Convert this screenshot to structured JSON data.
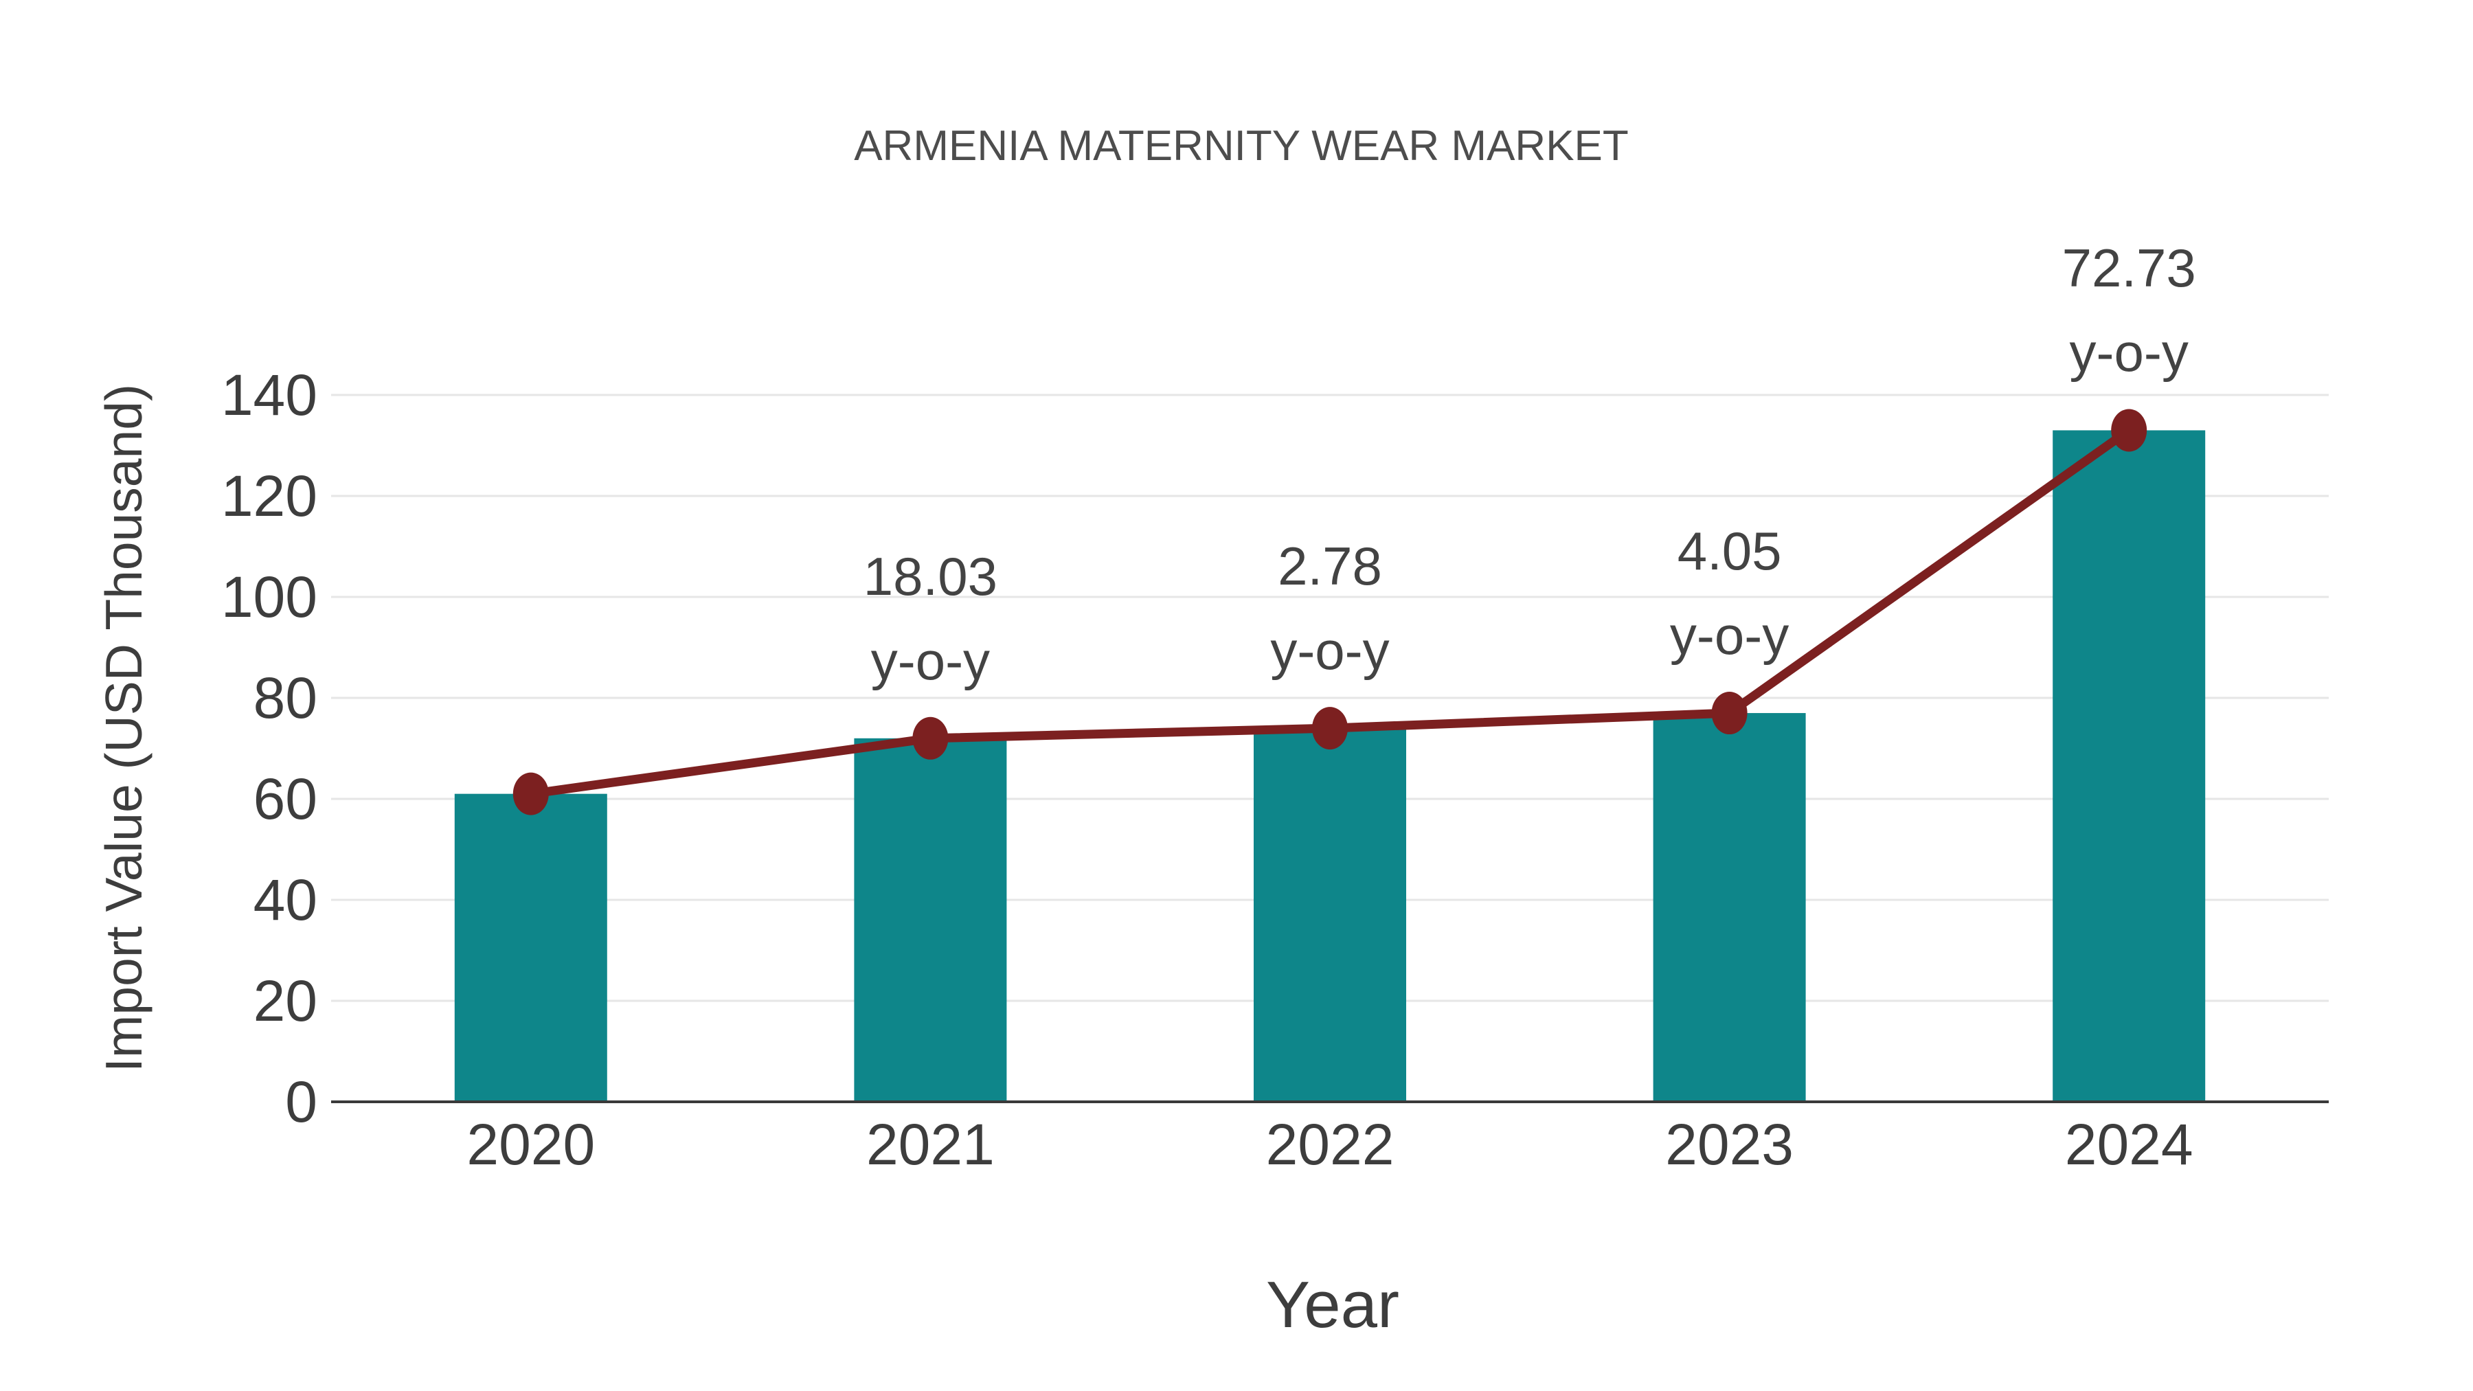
{
  "chart_data": {
    "type": "bar",
    "title": "ARMENIA MATERNITY WEAR MARKET",
    "xlabel": "Year",
    "ylabel": "Import Value (USD Thousand)",
    "categories": [
      "2020",
      "2021",
      "2022",
      "2023",
      "2024"
    ],
    "series": [
      {
        "name": "import-value-bars",
        "type": "bar",
        "values": [
          61,
          72,
          74,
          77,
          133
        ]
      },
      {
        "name": "import-value-line",
        "type": "line",
        "values": [
          61,
          72,
          74,
          77,
          133
        ]
      }
    ],
    "annotations": [
      {
        "category": "2021",
        "lines": [
          "18.03",
          "y-o-y"
        ]
      },
      {
        "category": "2022",
        "lines": [
          "2.78",
          "y-o-y"
        ]
      },
      {
        "category": "2023",
        "lines": [
          "4.05",
          "y-o-y"
        ]
      },
      {
        "category": "2024",
        "lines": [
          "72.73",
          "y-o-y"
        ]
      }
    ],
    "yticks": [
      0,
      20,
      40,
      60,
      80,
      100,
      120,
      140
    ],
    "ylim": [
      0,
      140
    ],
    "grid": true,
    "legend_position": "none",
    "colors": {
      "bar": "#0e868a",
      "line": "#7c2020",
      "marker": "#7c2020",
      "text": "#3d3d3d",
      "title": "#4d4d4d",
      "grid": "#e6e6e6",
      "axis": "#3a3a3a",
      "background": "#ffffff"
    }
  }
}
